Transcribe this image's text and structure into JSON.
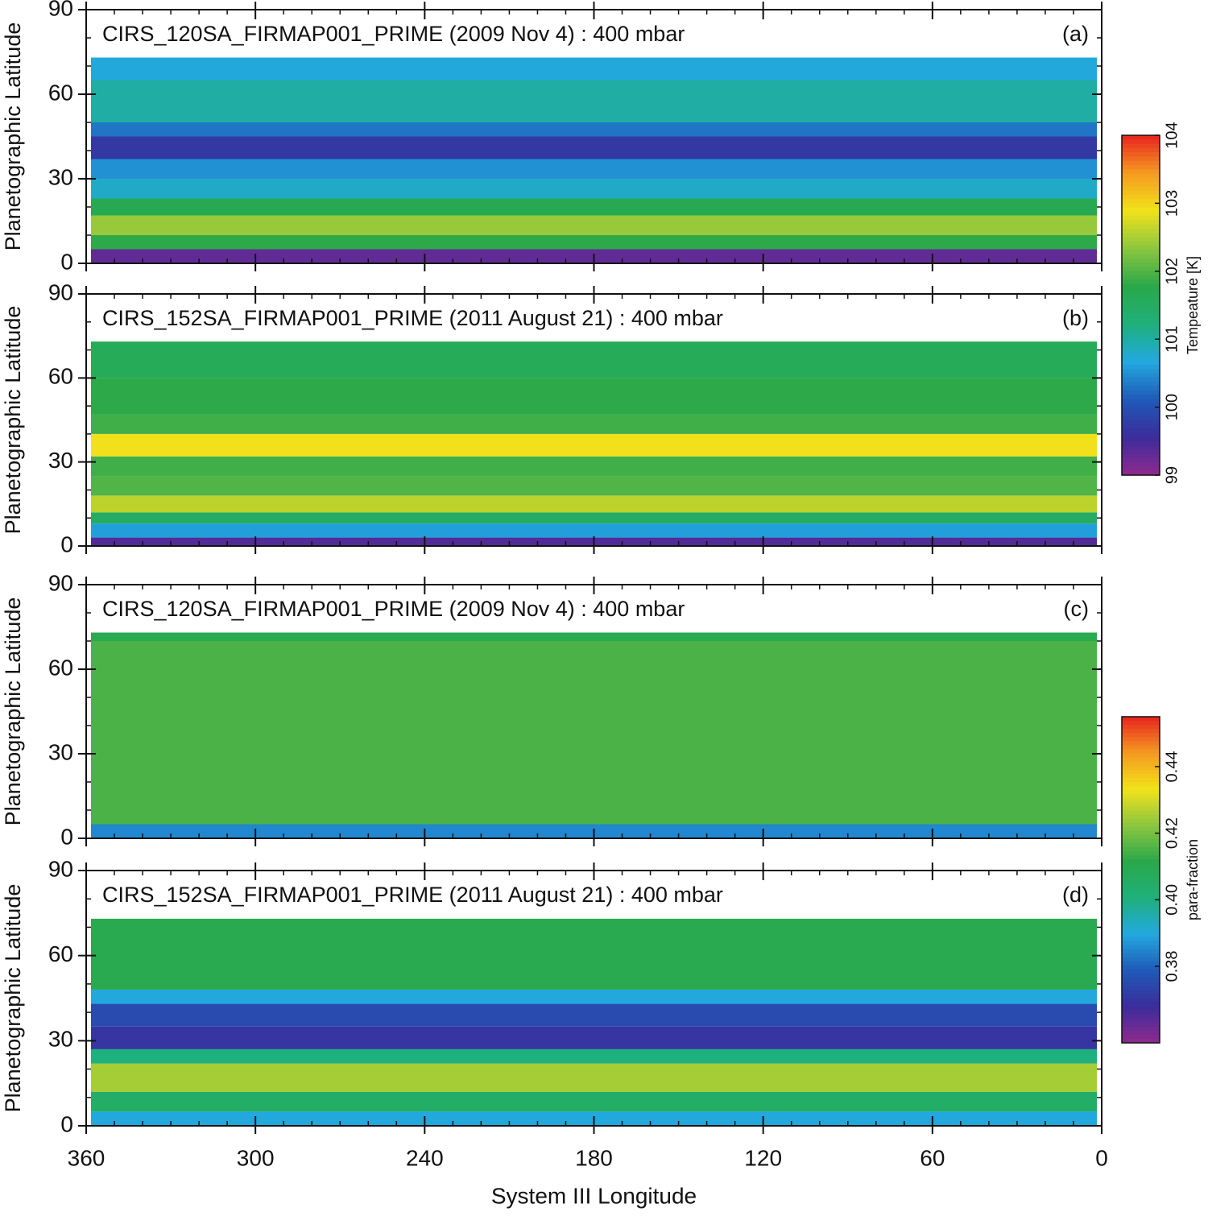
{
  "chart_data": [
    {
      "type": "heatmap",
      "title": "CIRS_120SA_FIRMAP001_PRIME (2009 Nov 4) : 400 mbar",
      "panel_label": "(a)",
      "ylabel": "Planetographic Latitude",
      "xlim": [
        360,
        0
      ],
      "xticks": [
        360,
        300,
        240,
        180,
        120,
        60,
        0
      ],
      "ylim": [
        0,
        90
      ],
      "yticks": [
        0,
        30,
        60,
        90
      ],
      "lat_edges": [
        0,
        5,
        10,
        17,
        23,
        30,
        37,
        45,
        50,
        65,
        73
      ],
      "values": [
        99.3,
        101.8,
        102.4,
        101.7,
        100.8,
        100.5,
        99.7,
        100.3,
        101.0,
        100.7
      ],
      "colorbar": {
        "label": "Tempeature [K]",
        "zlim": [
          99,
          104
        ],
        "zticks": [
          99,
          100,
          101,
          102,
          103,
          104
        ]
      }
    },
    {
      "type": "heatmap",
      "title": "CIRS_152SA_FIRMAP001_PRIME (2011 August 21) : 400 mbar",
      "panel_label": "(b)",
      "ylabel": "Planetographic Latitude",
      "xlim": [
        360,
        0
      ],
      "xticks": [
        360,
        300,
        240,
        180,
        120,
        60,
        0
      ],
      "ylim": [
        0,
        90
      ],
      "yticks": [
        0,
        30,
        60,
        90
      ],
      "lat_edges": [
        0,
        3,
        8,
        12,
        18,
        25,
        32,
        40,
        47,
        60,
        73
      ],
      "values": [
        99.4,
        100.6,
        101.5,
        102.6,
        102.0,
        101.9,
        102.9,
        101.9,
        101.8,
        101.6
      ],
      "colorbar_ref": 0
    },
    {
      "type": "heatmap",
      "title": "CIRS_120SA_FIRMAP001_PRIME  (2009 Nov 4) : 400 mbar",
      "panel_label": "(c)",
      "ylabel": "Planetographic Latitude",
      "xlim": [
        360,
        0
      ],
      "xticks": [
        360,
        300,
        240,
        180,
        120,
        60,
        0
      ],
      "ylim": [
        0,
        90
      ],
      "yticks": [
        0,
        30,
        60,
        90
      ],
      "lat_edges": [
        0,
        5,
        70,
        73
      ],
      "values": [
        0.385,
        0.415,
        0.41
      ],
      "colorbar": {
        "label": "para-fraction",
        "zlim": [
          0.357,
          0.455
        ],
        "zticks": [
          0.38,
          {
            "value": 0.4,
            "label": "0.40"
          },
          0.42,
          0.44
        ]
      }
    },
    {
      "type": "heatmap",
      "title": "CIRS_152SA_FIRMAP001_PRIME (2011 August 21) : 400 mbar",
      "panel_label": "(d)",
      "ylabel": "Planetographic Latitude",
      "xlabel": "System III Longitude",
      "xlim": [
        360,
        0
      ],
      "xticks": [
        360,
        300,
        240,
        180,
        120,
        60,
        0
      ],
      "ylim": [
        0,
        90
      ],
      "yticks": [
        0,
        30,
        60,
        90
      ],
      "lat_edges": [
        0,
        5,
        12,
        22,
        27,
        35,
        43,
        48,
        73
      ],
      "values": [
        0.39,
        0.405,
        0.425,
        0.4,
        0.37,
        0.375,
        0.39,
        0.41
      ],
      "colorbar_ref": 2
    }
  ]
}
